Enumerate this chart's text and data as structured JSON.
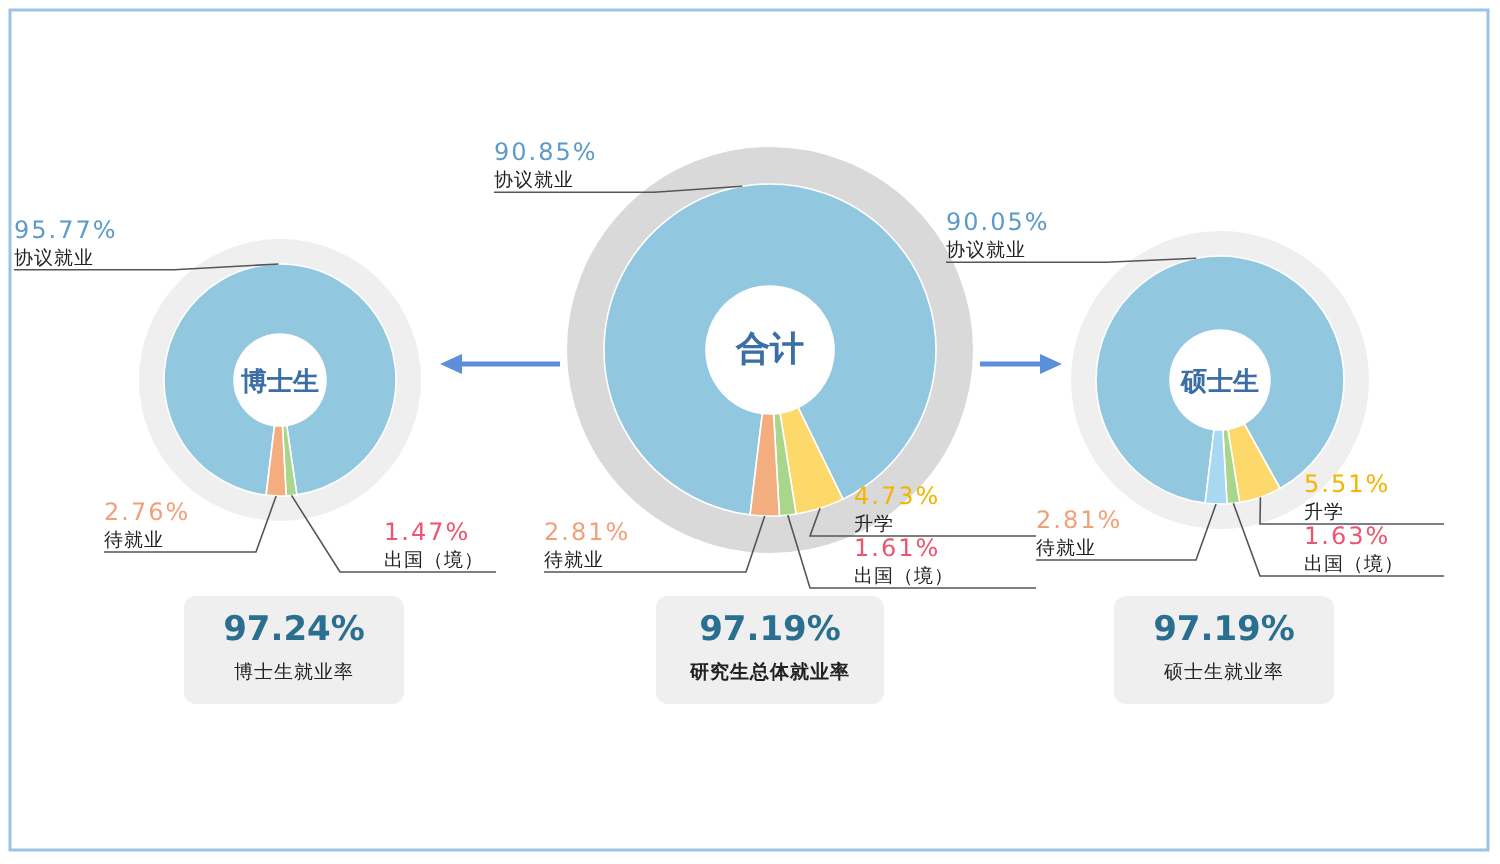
{
  "chart_data": [
    {
      "type": "donut",
      "title": "博士生",
      "categories": [
        "协议就业",
        "出国（境）",
        "待就业"
      ],
      "values": [
        95.77,
        1.47,
        2.76
      ],
      "colors": [
        "#92c7e0",
        "#a9d68a",
        "#f3ad7f"
      ],
      "value_labels": [
        "95.77%",
        "1.47%",
        "2.76%"
      ],
      "annotations": [
        "97.24%",
        "博士生就业率"
      ]
    },
    {
      "type": "donut",
      "title": "合计",
      "categories": [
        "协议就业",
        "升学",
        "出国（境）",
        "待就业"
      ],
      "values": [
        90.85,
        4.73,
        1.61,
        2.81
      ],
      "colors": [
        "#92c7e0",
        "#fdd86a",
        "#a9d68a",
        "#f3ad7f"
      ],
      "value_labels": [
        "90.85%",
        "4.73%",
        "1.61%",
        "2.81%"
      ],
      "annotations": [
        "97.19%",
        "研究生总体就业率"
      ]
    },
    {
      "type": "donut",
      "title": "硕士生",
      "categories": [
        "协议就业",
        "升学",
        "出国（境）",
        "待就业"
      ],
      "values": [
        90.05,
        5.51,
        1.63,
        2.81
      ],
      "colors": [
        "#92c7e0",
        "#fdd86a",
        "#a9d68a",
        "#a8d8f2"
      ],
      "value_labels": [
        "90.05%",
        "5.51%",
        "1.63%",
        "2.81%"
      ],
      "annotations": [
        "97.19%",
        "硕士生就业率"
      ]
    }
  ]
}
